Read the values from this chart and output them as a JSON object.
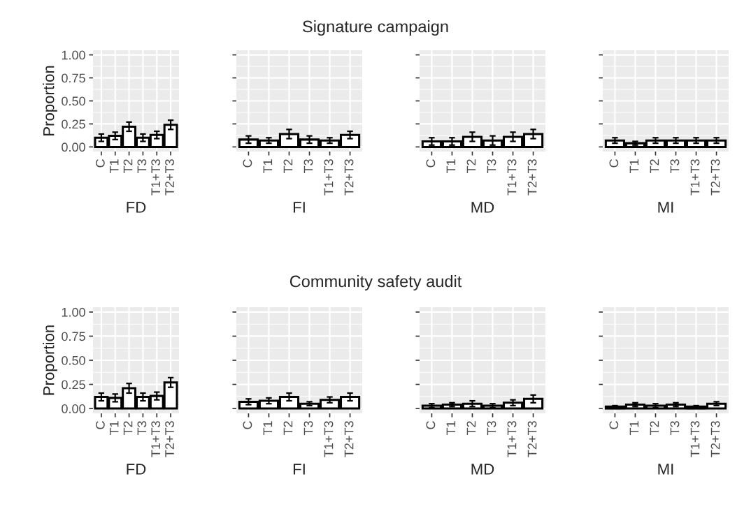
{
  "chart_data": [
    {
      "type": "bar",
      "xlabel": "FD",
      "ylabel": "Proportion",
      "categories": [
        "C",
        "T1",
        "T2",
        "T3",
        "T1+T3",
        "T2+T3"
      ],
      "values": [
        0.1,
        0.12,
        0.22,
        0.1,
        0.13,
        0.24
      ],
      "errors": [
        0.04,
        0.04,
        0.05,
        0.04,
        0.04,
        0.05
      ],
      "color": "#ffffff",
      "ylim": [
        -0.05,
        1.05
      ],
      "yticks": [
        {
          "value": 0,
          "label": "0.00"
        },
        {
          "value": 0.25,
          "label": "0.25"
        },
        {
          "value": 0.5,
          "label": "0.50"
        },
        {
          "value": 0.75,
          "label": "0.75"
        },
        {
          "value": 1,
          "label": "1.00"
        }
      ],
      "grid": true
    },
    {
      "type": "bar",
      "title": "Signature campaign",
      "xlabel": "FI",
      "categories": [
        "C",
        "T1",
        "T2",
        "T3",
        "T1+T3",
        "T2+T3"
      ],
      "values": [
        0.08,
        0.07,
        0.14,
        0.08,
        0.07,
        0.13
      ],
      "errors": [
        0.04,
        0.03,
        0.05,
        0.04,
        0.03,
        0.04
      ],
      "color": "#ffffff",
      "ylim": [
        -0.05,
        1.05
      ],
      "yticks": [
        {
          "value": 0,
          "label": null
        },
        {
          "value": 0.25,
          "label": null
        },
        {
          "value": 0.5,
          "label": null
        },
        {
          "value": 0.75,
          "label": null
        },
        {
          "value": 1,
          "label": null
        }
      ],
      "grid": true,
      "tick_labels": "x"
    },
    {
      "type": "bar",
      "xlabel": "MD",
      "categories": [
        "C",
        "T1",
        "T2",
        "T3",
        "T1+T3",
        "T2+T3"
      ],
      "values": [
        0.06,
        0.06,
        0.11,
        0.07,
        0.11,
        0.14
      ],
      "errors": [
        0.04,
        0.04,
        0.05,
        0.05,
        0.05,
        0.05
      ],
      "color": "#ffffff",
      "ylim": [
        -0.05,
        1.05
      ],
      "yticks": [
        {
          "value": 0,
          "label": null
        },
        {
          "value": 0.25,
          "label": null
        },
        {
          "value": 0.5,
          "label": null
        },
        {
          "value": 0.75,
          "label": null
        },
        {
          "value": 1,
          "label": null
        }
      ],
      "grid": true,
      "tick_labels": "x"
    },
    {
      "type": "bar",
      "xlabel": "MI",
      "categories": [
        "C",
        "T1",
        "T2",
        "T3",
        "T1+T3",
        "T2+T3"
      ],
      "values": [
        0.07,
        0.04,
        0.07,
        0.07,
        0.07,
        0.07
      ],
      "errors": [
        0.03,
        0.02,
        0.03,
        0.03,
        0.03,
        0.03
      ],
      "color": "#ffffff",
      "ylim": [
        -0.05,
        1.05
      ],
      "yticks": [
        {
          "value": 0,
          "label": null
        },
        {
          "value": 0.25,
          "label": null
        },
        {
          "value": 0.5,
          "label": null
        },
        {
          "value": 0.75,
          "label": null
        },
        {
          "value": 1,
          "label": null
        }
      ],
      "grid": true,
      "tick_labels": "x"
    },
    {
      "type": "bar",
      "xlabel": "FD",
      "ylabel": "Proportion",
      "categories": [
        "C",
        "T1",
        "T2",
        "T3",
        "T1+T3",
        "T2+T3"
      ],
      "values": [
        0.12,
        0.11,
        0.21,
        0.12,
        0.13,
        0.27
      ],
      "errors": [
        0.04,
        0.04,
        0.05,
        0.04,
        0.04,
        0.05
      ],
      "color": "#ffffff",
      "ylim": [
        -0.05,
        1.05
      ],
      "yticks": [
        {
          "value": 0,
          "label": "0.00"
        },
        {
          "value": 0.25,
          "label": "0.25"
        },
        {
          "value": 0.5,
          "label": "0.50"
        },
        {
          "value": 0.75,
          "label": "0.75"
        },
        {
          "value": 1,
          "label": "1.00"
        }
      ],
      "grid": true
    },
    {
      "type": "bar",
      "title": "Community safety audit",
      "xlabel": "FI",
      "categories": [
        "C",
        "T1",
        "T2",
        "T3",
        "T1+T3",
        "T2+T3"
      ],
      "values": [
        0.07,
        0.08,
        0.12,
        0.05,
        0.09,
        0.12
      ],
      "errors": [
        0.03,
        0.03,
        0.04,
        0.02,
        0.03,
        0.04
      ],
      "color": "#ffffff",
      "ylim": [
        -0.05,
        1.05
      ],
      "yticks": [
        {
          "value": 0,
          "label": null
        },
        {
          "value": 0.25,
          "label": null
        },
        {
          "value": 0.5,
          "label": null
        },
        {
          "value": 0.75,
          "label": null
        },
        {
          "value": 1,
          "label": null
        }
      ],
      "grid": true,
      "tick_labels": "x"
    },
    {
      "type": "bar",
      "xlabel": "MD",
      "categories": [
        "C",
        "T1",
        "T2",
        "T3",
        "T1+T3",
        "T2+T3"
      ],
      "values": [
        0.03,
        0.04,
        0.05,
        0.03,
        0.06,
        0.1
      ],
      "errors": [
        0.02,
        0.02,
        0.03,
        0.02,
        0.03,
        0.04
      ],
      "color": "#ffffff",
      "ylim": [
        -0.05,
        1.05
      ],
      "yticks": [
        {
          "value": 0,
          "label": null
        },
        {
          "value": 0.25,
          "label": null
        },
        {
          "value": 0.5,
          "label": null
        },
        {
          "value": 0.75,
          "label": null
        },
        {
          "value": 1,
          "label": null
        }
      ],
      "grid": true,
      "tick_labels": "x"
    },
    {
      "type": "bar",
      "xlabel": "MI",
      "categories": [
        "C",
        "T1",
        "T2",
        "T3",
        "T1+T3",
        "T2+T3"
      ],
      "values": [
        0.02,
        0.04,
        0.03,
        0.04,
        0.02,
        0.05
      ],
      "errors": [
        0.01,
        0.02,
        0.02,
        0.02,
        0.01,
        0.02
      ],
      "color": "#ffffff",
      "ylim": [
        -0.05,
        1.05
      ],
      "yticks": [
        {
          "value": 0,
          "label": null
        },
        {
          "value": 0.25,
          "label": null
        },
        {
          "value": 0.5,
          "label": null
        },
        {
          "value": 0.75,
          "label": null
        },
        {
          "value": 1,
          "label": null
        }
      ],
      "grid": true,
      "tick_labels": "x"
    }
  ]
}
